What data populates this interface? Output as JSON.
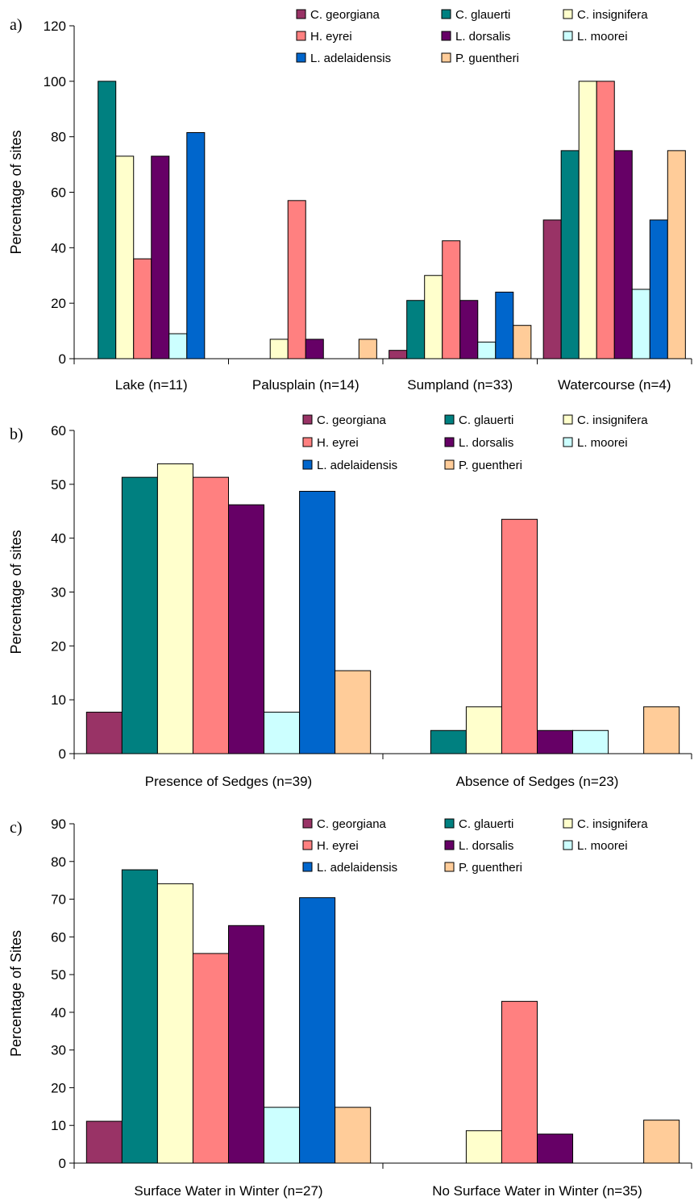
{
  "colors": {
    "C. georgiana": "#993366",
    "C. glauerti": "#008080",
    "C. insignifera": "#FFFFCC",
    "H. eyrei": "#FF8080",
    "L. dorsalis": "#660066",
    "L. moorei": "#CCFFFF",
    "L. adelaidensis": "#0066CC",
    "P. guentheri": "#FFCC99"
  },
  "chart_data": [
    {
      "type": "bar",
      "panel": "a)",
      "ylabel": "Percentage of sites",
      "ylim": [
        0,
        120
      ],
      "yticks": [
        0,
        20,
        40,
        60,
        80,
        100,
        120
      ],
      "legend": "top-right",
      "categories": [
        "Lake (n=11)",
        "Palusplain (n=14)",
        "Sumpland (n=33)",
        "Watercourse (n=4)"
      ],
      "series": [
        {
          "name": "C. georgiana",
          "values": [
            0,
            0,
            3,
            50
          ]
        },
        {
          "name": "C. glauerti",
          "values": [
            100,
            0,
            21,
            75
          ]
        },
        {
          "name": "C. insignifera",
          "values": [
            73,
            7,
            30,
            100
          ]
        },
        {
          "name": "H. eyrei",
          "values": [
            36,
            57,
            42.5,
            100
          ]
        },
        {
          "name": "L. dorsalis",
          "values": [
            73,
            7,
            21,
            75
          ]
        },
        {
          "name": "L. moorei",
          "values": [
            9,
            0,
            6,
            25
          ]
        },
        {
          "name": "L. adelaidensis",
          "values": [
            81.5,
            0,
            24,
            50
          ]
        },
        {
          "name": "P. guentheri",
          "values": [
            0,
            7,
            12,
            75
          ]
        }
      ]
    },
    {
      "type": "bar",
      "panel": "b)",
      "ylabel": "Percentage of sites",
      "ylim": [
        0,
        60
      ],
      "yticks": [
        0,
        10,
        20,
        30,
        40,
        50,
        60
      ],
      "legend": "top-right",
      "categories": [
        "Presence of Sedges (n=39)",
        "Absence of Sedges (n=23)"
      ],
      "series": [
        {
          "name": "C. georgiana",
          "values": [
            7.7,
            0
          ]
        },
        {
          "name": "C. glauerti",
          "values": [
            51.3,
            4.3
          ]
        },
        {
          "name": "C. insignifera",
          "values": [
            53.8,
            8.7
          ]
        },
        {
          "name": "H. eyrei",
          "values": [
            51.3,
            43.5
          ]
        },
        {
          "name": "L. dorsalis",
          "values": [
            46.2,
            4.3
          ]
        },
        {
          "name": "L. moorei",
          "values": [
            7.7,
            4.3
          ]
        },
        {
          "name": "L. adelaidensis",
          "values": [
            48.7,
            0
          ]
        },
        {
          "name": "P. guentheri",
          "values": [
            15.4,
            8.7
          ]
        }
      ]
    },
    {
      "type": "bar",
      "panel": "c)",
      "ylabel": "Percentage of Sites",
      "ylim": [
        0,
        90
      ],
      "yticks": [
        0,
        10,
        20,
        30,
        40,
        50,
        60,
        70,
        80,
        90
      ],
      "legend": "top-right",
      "categories": [
        "Surface Water in Winter (n=27)",
        "No Surface Water in Winter (n=35)"
      ],
      "series": [
        {
          "name": "C. georgiana",
          "values": [
            11.1,
            0
          ]
        },
        {
          "name": "C. glauerti",
          "values": [
            77.8,
            0
          ]
        },
        {
          "name": "C. insignifera",
          "values": [
            74.1,
            8.6
          ]
        },
        {
          "name": "H. eyrei",
          "values": [
            55.6,
            42.9
          ]
        },
        {
          "name": "L. dorsalis",
          "values": [
            63,
            7.7
          ]
        },
        {
          "name": "L. moorei",
          "values": [
            14.8,
            0
          ]
        },
        {
          "name": "L. adelaidensis",
          "values": [
            70.4,
            0
          ]
        },
        {
          "name": "P. guentheri",
          "values": [
            14.8,
            11.4
          ]
        }
      ]
    }
  ]
}
